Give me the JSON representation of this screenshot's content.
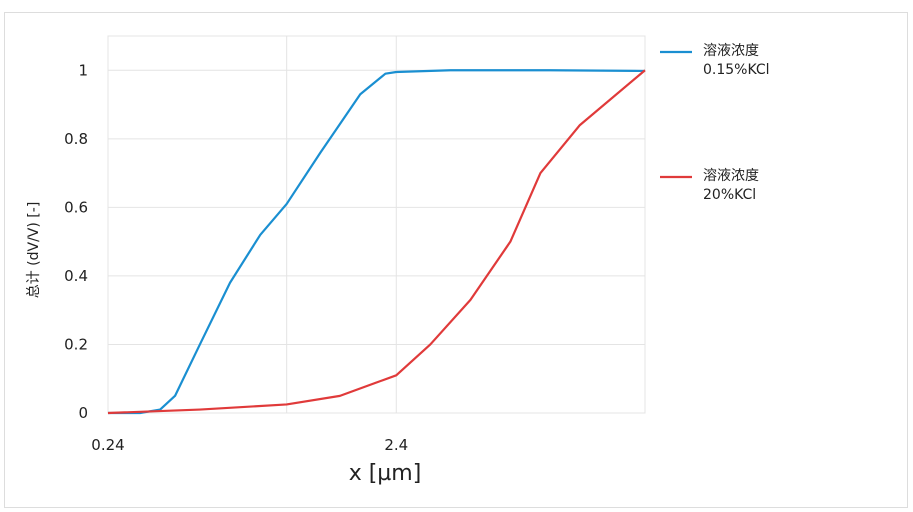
{
  "chart_data": {
    "type": "line",
    "xscale": "log",
    "x_label": "x [µm]",
    "y_label": "总计 (dV/V) [-]",
    "xlim": [
      0.24,
      17.5
    ],
    "xticks": [
      0.24,
      2.4
    ],
    "xgrid": [
      1
    ],
    "ylim": [
      0,
      1.1
    ],
    "yticks": [
      0,
      0.2,
      0.4,
      0.6,
      0.8,
      1
    ],
    "grid": true,
    "legend": "right",
    "series": [
      {
        "name": "溶液浓度 0.15%KCl",
        "color": "#1a8fd1",
        "x": [
          0.24,
          0.31,
          0.364,
          0.41,
          0.5,
          0.636,
          0.81,
          1.0,
          1.31,
          1.8,
          2.2,
          2.4,
          3.7,
          8.2,
          17.5
        ],
        "values": [
          0,
          0,
          0.01,
          0.05,
          0.2,
          0.38,
          0.52,
          0.61,
          0.76,
          0.93,
          0.99,
          0.995,
          1,
          1,
          0.998
        ]
      },
      {
        "name": "溶液浓度 20%KCl",
        "color": "#e03a3a",
        "x": [
          0.24,
          0.5,
          1.0,
          1.53,
          2.4,
          3.15,
          4.34,
          5.97,
          7.59,
          10.4,
          17.5
        ],
        "values": [
          0,
          0.01,
          0.025,
          0.05,
          0.11,
          0.2,
          0.33,
          0.5,
          0.7,
          0.84,
          1
        ]
      }
    ]
  }
}
